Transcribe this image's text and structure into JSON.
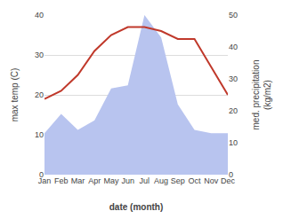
{
  "chart_data": {
    "type": "line",
    "categories": [
      "Jan",
      "Feb",
      "Mar",
      "Apr",
      "May",
      "Jun",
      "Jul",
      "Aug",
      "Sep",
      "Oct",
      "Nov",
      "Dec"
    ],
    "series": [
      {
        "type": "area",
        "axis": "y2",
        "color": "#b8c4ef",
        "values": [
          13,
          19,
          14,
          17,
          27,
          28,
          50,
          43,
          22,
          14,
          13,
          13
        ]
      },
      {
        "type": "line",
        "color": "#c0392b",
        "values": [
          19,
          21,
          25,
          31,
          35,
          37,
          37,
          36,
          34,
          34,
          27,
          20
        ]
      }
    ],
    "xlabel": "date (month)",
    "ylabel": "max temp (C)",
    "y2label": "med. precipitation\n(kg/m2)",
    "ylim": [
      0,
      40
    ],
    "yticks": [
      0,
      10,
      20,
      30,
      40
    ],
    "y2lim": [
      0,
      50
    ],
    "y2ticks": [
      0,
      10,
      20,
      30,
      40,
      50
    ],
    "grid": true
  }
}
